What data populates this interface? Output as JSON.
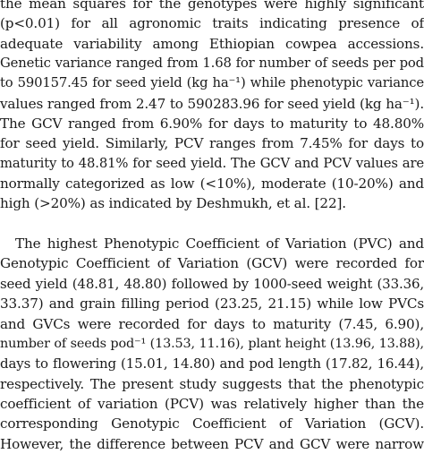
{
  "paragraph_1": {
    "lines": [
      "the mean squares for the genotypes were highly significant",
      "(p<0.01) for all agronomic traits indicating presence of",
      "adequate variability among Ethiopian cowpea accessions.",
      "Genetic variance ranged from 1.68 for number of seeds per pod",
      "to 590157.45 for seed yield (kg ha⁻¹) while phenotypic variance",
      "values ranged from 2.47 to 590283.96 for seed yield (kg ha⁻¹).",
      "The GCV ranged from 6.90% for days to maturity to 48.80%",
      "for seed yield. Similarly, PCV ranges from 7.45% for days to",
      "maturity to 48.81% for seed yield. The GCV and PCV values are",
      "normally categorized as low (<10%), moderate (10-20%) and",
      "high (>20%) as indicated by Deshmukh, et al. [22]."
    ]
  },
  "paragraph_2": {
    "lines": [
      "The highest Phenotypic Coefficient of Variation (PVC) and",
      "Genotypic Coefficient of Variation (GCV) were recorded for",
      "seed yield (48.81, 48.80) followed by 1000-seed weight (33.36,",
      "33.37) and grain filling period (23.25, 21.15) while low PVCs",
      "and GVCs were recorded for days to maturity (7.45, 6.90),",
      "number of seeds pod⁻¹ (13.53, 11.16), plant height (13.96, 13.88),",
      "days to flowering (15.01, 14.80) and pod length (17.82, 16.44),",
      "respectively. The present study suggests that the phenotypic",
      "coefficient of variation (PCV) was relatively higher than the",
      "corresponding Genotypic Coefficient of Variation (GCV).",
      "However, the difference between PCV and GCV were narrow"
    ]
  }
}
